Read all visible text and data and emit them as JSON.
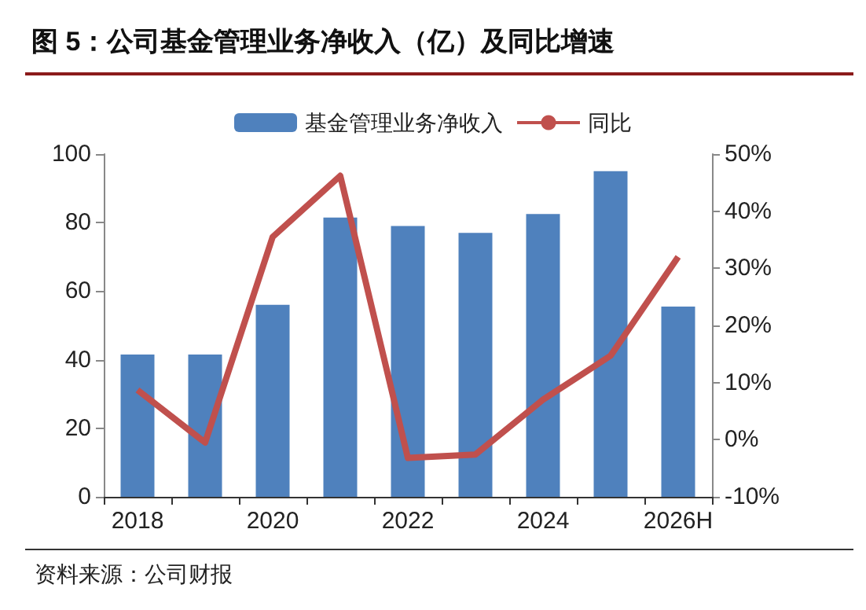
{
  "chart_data": {
    "type": "bar",
    "title": "图 5：公司基金管理业务净收入（亿）及同比增速",
    "categories": [
      "2018",
      null,
      "2020",
      null,
      "2022",
      null,
      "2024",
      null,
      "2026H"
    ],
    "series": [
      {
        "name": "基金管理业务净收入",
        "color": "#4f81bd",
        "values": [
          41.5,
          41.5,
          56,
          81.5,
          79,
          77,
          82.5,
          95,
          55.5
        ]
      },
      {
        "name": "同比",
        "type": "line",
        "axis": "y2",
        "color": "#c0504d",
        "values": [
          8.7,
          -0.5,
          35.5,
          46.2,
          -3.2,
          -2.6,
          7,
          14.7,
          32
        ]
      }
    ],
    "ylim": [
      0,
      100
    ],
    "yticks": [
      0,
      20,
      40,
      60,
      80,
      100
    ],
    "y2lim": [
      -10,
      50
    ],
    "y2ticks": [
      {
        "value": -10,
        "label": "-10%"
      },
      {
        "value": 0,
        "label": "0%"
      },
      {
        "value": 10,
        "label": "10%"
      },
      {
        "value": 20,
        "label": "20%"
      },
      {
        "value": 30,
        "label": "30%"
      },
      {
        "value": 40,
        "label": "40%"
      },
      {
        "value": 50,
        "label": "50%"
      }
    ],
    "grid": false,
    "legend": "top",
    "marker": "none",
    "annotations": [
      "资料来源：公司财报"
    ]
  }
}
